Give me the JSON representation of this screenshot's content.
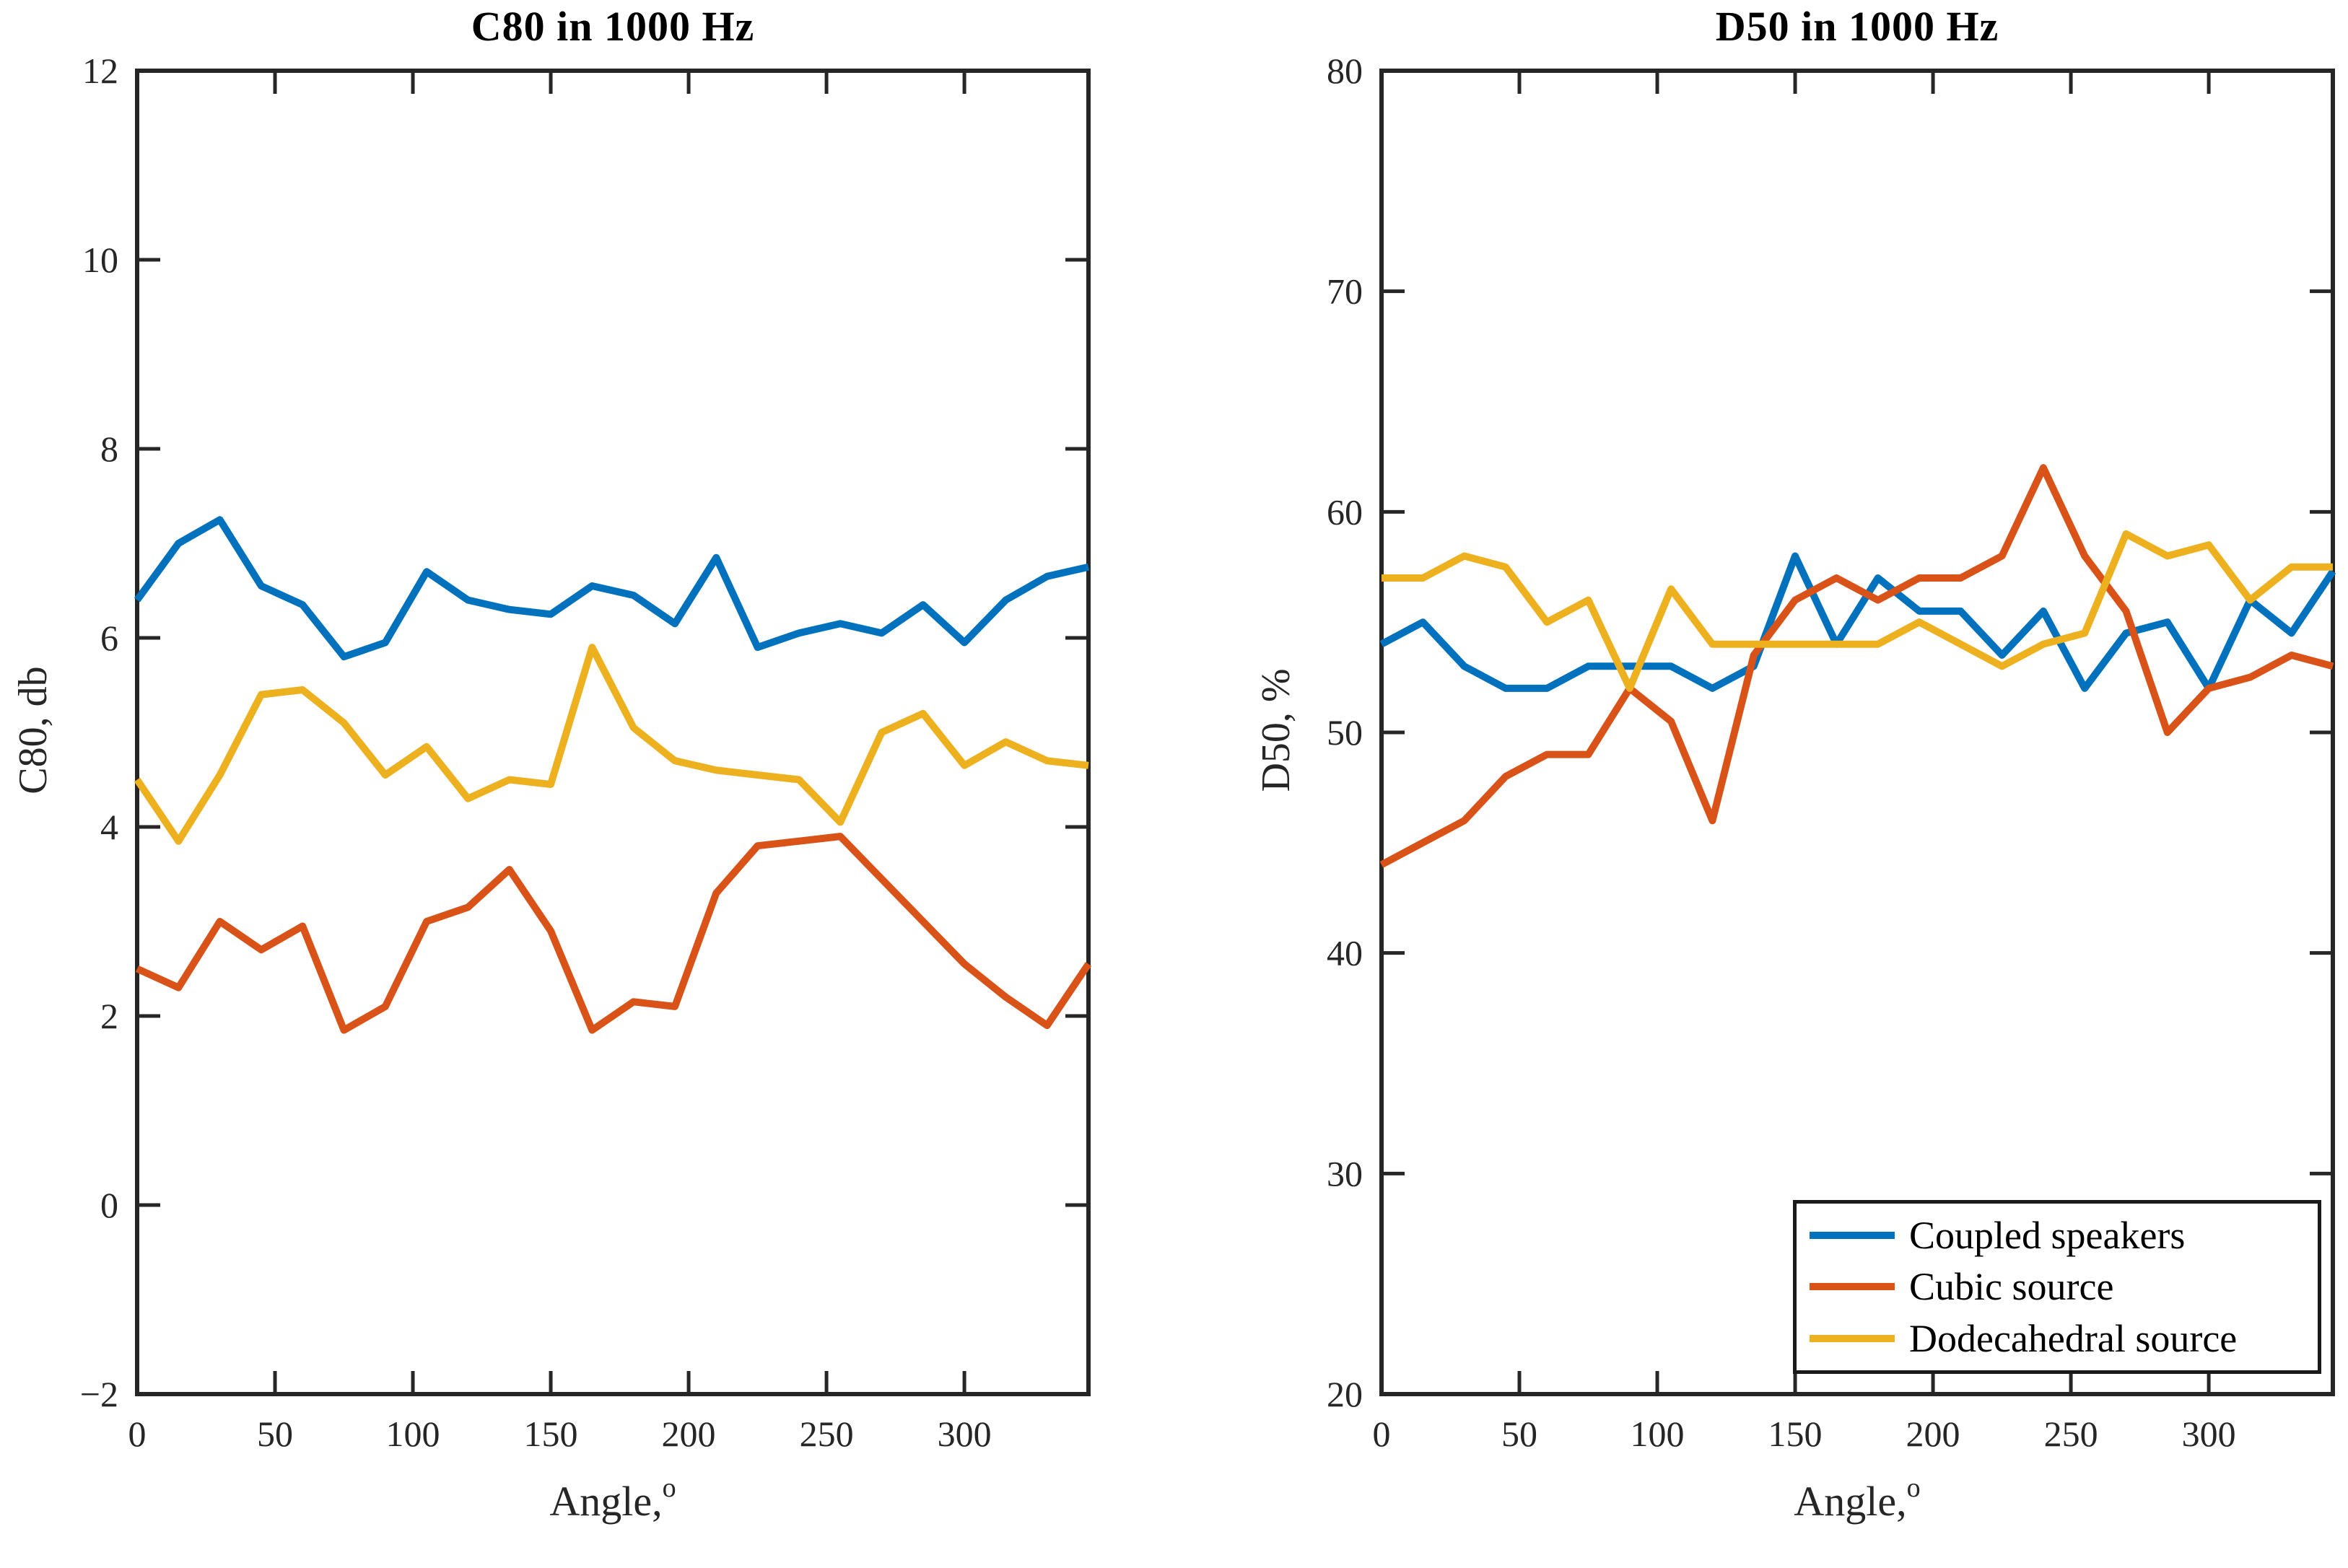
{
  "page": {
    "background": "#ffffff",
    "axis_color": "#262626"
  },
  "x_axis": {
    "label": "Angle,",
    "label_sup": "o"
  },
  "legend": {
    "position": "lower-right-of-second-chart",
    "entries": [
      {
        "label": "Coupled speakers",
        "color": "#0072BD"
      },
      {
        "label": "Cubic source",
        "color": "#D95319"
      },
      {
        "label": "Dodecahedral source",
        "color": "#EDB120"
      }
    ]
  },
  "chart_data": [
    {
      "type": "line",
      "title": "C80 in 1000 Hz",
      "xlabel": "Angle,",
      "xlabel_sup": "o",
      "ylabel": "C80, db",
      "xlim": [
        0,
        345
      ],
      "ylim": [
        -2,
        12
      ],
      "xticks": [
        0,
        50,
        100,
        150,
        200,
        250,
        300
      ],
      "yticks": [
        -2,
        0,
        2,
        4,
        6,
        8,
        10,
        12
      ],
      "grid": false,
      "x": [
        0,
        15,
        30,
        45,
        60,
        75,
        90,
        105,
        120,
        135,
        150,
        165,
        180,
        195,
        210,
        225,
        240,
        255,
        270,
        285,
        300,
        315,
        330,
        345
      ],
      "series": [
        {
          "name": "Coupled speakers",
          "color": "#0072BD",
          "values": [
            6.4,
            7.0,
            7.25,
            6.55,
            6.35,
            5.8,
            5.95,
            6.7,
            6.4,
            6.3,
            6.25,
            6.55,
            6.45,
            6.15,
            6.85,
            5.9,
            6.05,
            6.15,
            6.05,
            6.35,
            5.95,
            6.4,
            6.65,
            6.75
          ]
        },
        {
          "name": "Cubic source",
          "color": "#D95319",
          "values": [
            2.5,
            2.3,
            3.0,
            2.7,
            2.95,
            1.85,
            2.1,
            3.0,
            3.15,
            3.55,
            2.9,
            1.85,
            2.15,
            2.1,
            3.3,
            3.8,
            3.85,
            3.9,
            3.45,
            3.0,
            2.55,
            2.2,
            1.9,
            2.55
          ]
        },
        {
          "name": "Dodecahedral source",
          "color": "#EDB120",
          "values": [
            4.5,
            3.85,
            4.55,
            5.4,
            5.45,
            5.1,
            4.55,
            4.85,
            4.3,
            4.5,
            4.45,
            5.9,
            5.05,
            4.7,
            4.6,
            4.55,
            4.5,
            4.05,
            5.0,
            5.2,
            4.65,
            4.9,
            4.7,
            4.65
          ]
        }
      ]
    },
    {
      "type": "line",
      "title": "D50 in 1000 Hz",
      "xlabel": "Angle,",
      "xlabel_sup": "o",
      "ylabel": "D50, %",
      "xlim": [
        0,
        345
      ],
      "ylim": [
        20,
        80
      ],
      "xticks": [
        0,
        50,
        100,
        150,
        200,
        250,
        300
      ],
      "yticks": [
        20,
        30,
        40,
        50,
        60,
        70,
        80
      ],
      "grid": false,
      "legend": true,
      "x": [
        0,
        15,
        30,
        45,
        60,
        75,
        90,
        105,
        120,
        135,
        150,
        165,
        180,
        195,
        210,
        225,
        240,
        255,
        270,
        285,
        300,
        315,
        330,
        345
      ],
      "series": [
        {
          "name": "Coupled speakers",
          "color": "#0072BD",
          "values": [
            54,
            55,
            53,
            52,
            52,
            53,
            53,
            53,
            52,
            53,
            58,
            54,
            57,
            55.5,
            55.5,
            53.5,
            55.5,
            52,
            54.5,
            55,
            52,
            56,
            54.5,
            57.3
          ]
        },
        {
          "name": "Cubic source",
          "color": "#D95319",
          "values": [
            44,
            45,
            46,
            48,
            49,
            49,
            52,
            50.5,
            46,
            53.5,
            56,
            57,
            56,
            57,
            57,
            58,
            62,
            58,
            55.5,
            50,
            52,
            52.5,
            53.5,
            53
          ]
        },
        {
          "name": "Dodecahedral source",
          "color": "#EDB120",
          "values": [
            57,
            57,
            58,
            57.5,
            55,
            56,
            52,
            56.5,
            54,
            54,
            54,
            54,
            54,
            55,
            54,
            53,
            54,
            54.5,
            59,
            58,
            58.5,
            56,
            57.5,
            57.5
          ]
        }
      ]
    }
  ]
}
